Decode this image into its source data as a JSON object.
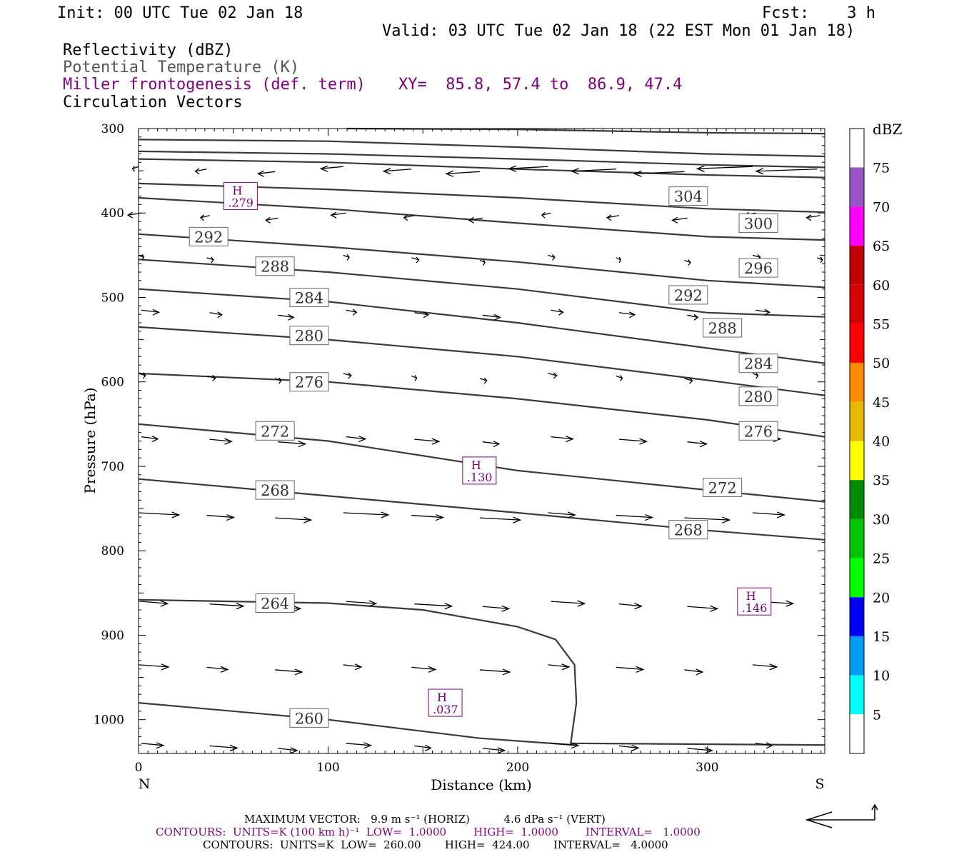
{
  "header": {
    "init": "Init: 00 UTC Tue 02 Jan 18",
    "fcst": "Fcst:    3 h",
    "valid": "Valid: 03 UTC Tue 02 Jan 18 (22 EST Mon 01 Jan 18)"
  },
  "legend": {
    "reflectivity": "Reflectivity (dBZ)",
    "theta": "Potential Temperature (K)",
    "miller": "Miller frontogenesis (def. term)",
    "xy": "XY=  85.8, 57.4 to  86.9, 47.4",
    "vectors": "Circulation Vectors"
  },
  "colors": {
    "purple": "#800080",
    "gray_text": "#555555",
    "contour": "#3a3a3a"
  },
  "chart_data": {
    "type": "line",
    "xlabel": "Distance (km)",
    "ylabel": "Pressure (hPa)",
    "xlim": [
      0,
      362
    ],
    "ylim": [
      1040,
      300
    ],
    "x_ticks": [
      0,
      100,
      200,
      300
    ],
    "y_ticks": [
      300,
      400,
      500,
      600,
      700,
      800,
      900,
      1000
    ],
    "left_end_label": "N",
    "right_end_label": "S",
    "theta_contours": [
      {
        "value": 304,
        "label": "304",
        "points": [
          [
            0,
            336
          ],
          [
            100,
            340
          ],
          [
            200,
            348
          ],
          [
            300,
            355
          ],
          [
            362,
            358
          ]
        ],
        "labels_at": [
          [
            290,
            380
          ]
        ]
      },
      {
        "value": 300,
        "label": "300",
        "points": [
          [
            0,
            365
          ],
          [
            100,
            372
          ],
          [
            200,
            382
          ],
          [
            300,
            395
          ],
          [
            362,
            399
          ]
        ],
        "labels_at": [
          [
            327,
            412
          ]
        ]
      },
      {
        "value": 296,
        "label": "296",
        "points": [
          [
            0,
            382
          ],
          [
            100,
            395
          ],
          [
            200,
            412
          ],
          [
            300,
            428
          ],
          [
            362,
            432
          ]
        ],
        "labels_at": [
          [
            327,
            465
          ]
        ]
      },
      {
        "value": 292,
        "label": "292",
        "points": [
          [
            0,
            425
          ],
          [
            100,
            440
          ],
          [
            200,
            458
          ],
          [
            300,
            480
          ],
          [
            362,
            488
          ]
        ],
        "labels_at": [
          [
            37,
            428
          ],
          [
            290,
            497
          ]
        ]
      },
      {
        "value": 288,
        "label": "288",
        "points": [
          [
            0,
            455
          ],
          [
            100,
            470
          ],
          [
            200,
            490
          ],
          [
            300,
            518
          ],
          [
            362,
            523
          ]
        ],
        "labels_at": [
          [
            72,
            463
          ],
          [
            308,
            536
          ]
        ]
      },
      {
        "value": 284,
        "label": "284",
        "points": [
          [
            0,
            490
          ],
          [
            100,
            505
          ],
          [
            200,
            530
          ],
          [
            300,
            560
          ],
          [
            362,
            578
          ]
        ],
        "labels_at": [
          [
            90,
            500
          ],
          [
            327,
            578
          ]
        ]
      },
      {
        "value": 280,
        "label": "280",
        "points": [
          [
            0,
            535
          ],
          [
            100,
            550
          ],
          [
            200,
            570
          ],
          [
            300,
            598
          ],
          [
            362,
            616
          ]
        ],
        "labels_at": [
          [
            90,
            545
          ],
          [
            327,
            617
          ]
        ]
      },
      {
        "value": 276,
        "label": "276",
        "points": [
          [
            0,
            590
          ],
          [
            100,
            600
          ],
          [
            200,
            620
          ],
          [
            300,
            645
          ],
          [
            362,
            665
          ]
        ],
        "labels_at": [
          [
            90,
            600
          ],
          [
            327,
            658
          ]
        ]
      },
      {
        "value": 272,
        "label": "272",
        "points": [
          [
            0,
            650
          ],
          [
            100,
            670
          ],
          [
            200,
            705
          ],
          [
            300,
            728
          ],
          [
            362,
            742
          ]
        ],
        "labels_at": [
          [
            72,
            658
          ],
          [
            308,
            725
          ]
        ]
      },
      {
        "value": 268,
        "label": "268",
        "points": [
          [
            0,
            715
          ],
          [
            100,
            735
          ],
          [
            200,
            755
          ],
          [
            300,
            776
          ],
          [
            362,
            787
          ]
        ],
        "labels_at": [
          [
            72,
            728
          ],
          [
            290,
            775
          ]
        ]
      },
      {
        "value": 264,
        "label": "264",
        "points": [
          [
            0,
            858
          ],
          [
            100,
            862
          ],
          [
            150,
            870
          ],
          [
            200,
            890
          ],
          [
            220,
            905
          ],
          [
            230,
            935
          ],
          [
            231,
            980
          ],
          [
            228,
            1028
          ],
          [
            362,
            1030
          ]
        ],
        "labels_at": [
          [
            72,
            862
          ]
        ]
      },
      {
        "value": 260,
        "label": "260",
        "points": [
          [
            0,
            980
          ],
          [
            100,
            1000
          ],
          [
            180,
            1022
          ],
          [
            230,
            1030
          ]
        ],
        "labels_at": [
          [
            90,
            998
          ]
        ]
      }
    ],
    "frontogenesis_maxima": [
      {
        "symbol": "H",
        "value": ".279",
        "x": 54,
        "y": 380
      },
      {
        "symbol": "H",
        "value": ".130",
        "x": 180,
        "y": 705
      },
      {
        "symbol": "H",
        "value": ".146",
        "x": 325,
        "y": 860
      },
      {
        "symbol": "H",
        "value": ".037",
        "x": 162,
        "y": 980
      }
    ],
    "colorbar": {
      "title": "dBZ",
      "levels": [
        "5",
        "10",
        "15",
        "20",
        "25",
        "30",
        "35",
        "40",
        "45",
        "50",
        "55",
        "60",
        "65",
        "70",
        "75"
      ],
      "colors": [
        "#00ffff",
        "#009cf5",
        "#0000f5",
        "#00ff00",
        "#00c600",
        "#008c00",
        "#ffff00",
        "#e6b800",
        "#ff8c00",
        "#ff0000",
        "#d80000",
        "#c00000",
        "#ff00ff",
        "#9955c8",
        "#ffffff"
      ]
    }
  },
  "footer": {
    "line1": "MAXIMUM VECTOR:   9.9 m s⁻¹ (HORIZ)          4.6 dPa s⁻¹ (VERT)",
    "line2": "CONTOURS:  UNITS=K (100 km h)⁻¹  LOW=  1.0000        HIGH=  1.0000        INTERVAL=   1.0000",
    "line3": "CONTOURS:  UNITS=K  LOW=  260.00       HIGH=  424.00       INTERVAL=   4.0000"
  }
}
